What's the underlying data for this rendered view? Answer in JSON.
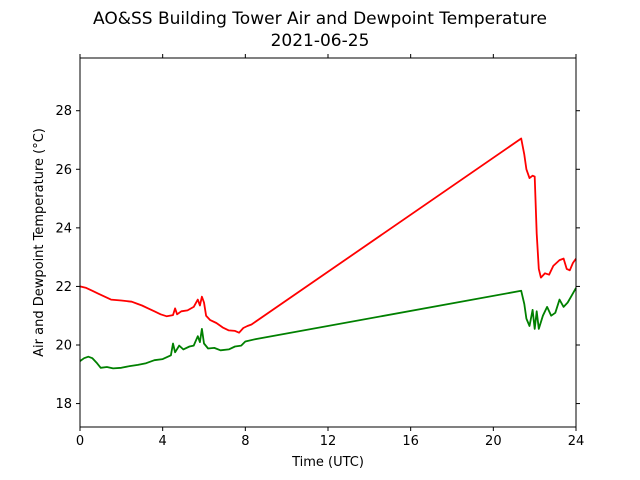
{
  "chart_data": {
    "type": "line",
    "title": "AO&SS Building Tower Air and Dewpoint Temperature",
    "subtitle": "2021-06-25",
    "xlabel": "Time (UTC)",
    "ylabel": "Air and Dewpoint Temperature (°C)",
    "xlim": [
      0,
      24
    ],
    "ylim": [
      17.2,
      29.8
    ],
    "xticks": [
      0,
      4,
      8,
      12,
      16,
      20,
      24
    ],
    "yticks": [
      18,
      20,
      22,
      24,
      26,
      28
    ],
    "grid": false,
    "legend": "none",
    "series": [
      {
        "color": "#ff0000",
        "points": [
          [
            0.0,
            22.0
          ],
          [
            0.3,
            21.95
          ],
          [
            0.6,
            21.85
          ],
          [
            0.9,
            21.75
          ],
          [
            1.2,
            21.65
          ],
          [
            1.5,
            21.55
          ],
          [
            2.0,
            21.52
          ],
          [
            2.5,
            21.48
          ],
          [
            2.8,
            21.4
          ],
          [
            3.0,
            21.35
          ],
          [
            3.3,
            21.25
          ],
          [
            3.6,
            21.15
          ],
          [
            3.9,
            21.05
          ],
          [
            4.2,
            20.98
          ],
          [
            4.5,
            21.02
          ],
          [
            4.6,
            21.25
          ],
          [
            4.7,
            21.05
          ],
          [
            4.9,
            21.15
          ],
          [
            5.2,
            21.18
          ],
          [
            5.5,
            21.3
          ],
          [
            5.7,
            21.55
          ],
          [
            5.8,
            21.35
          ],
          [
            5.9,
            21.65
          ],
          [
            6.0,
            21.45
          ],
          [
            6.1,
            21.0
          ],
          [
            6.3,
            20.85
          ],
          [
            6.6,
            20.75
          ],
          [
            6.9,
            20.6
          ],
          [
            7.2,
            20.5
          ],
          [
            7.5,
            20.48
          ],
          [
            7.7,
            20.42
          ],
          [
            7.9,
            20.58
          ],
          [
            8.1,
            20.65
          ],
          [
            8.3,
            20.7
          ],
          [
            21.35,
            27.05
          ],
          [
            21.5,
            26.5
          ],
          [
            21.6,
            26.0
          ],
          [
            21.75,
            25.7
          ],
          [
            21.9,
            25.78
          ],
          [
            22.0,
            25.75
          ],
          [
            22.1,
            23.8
          ],
          [
            22.2,
            22.6
          ],
          [
            22.3,
            22.3
          ],
          [
            22.5,
            22.45
          ],
          [
            22.7,
            22.4
          ],
          [
            22.9,
            22.7
          ],
          [
            23.2,
            22.9
          ],
          [
            23.4,
            22.95
          ],
          [
            23.55,
            22.6
          ],
          [
            23.7,
            22.55
          ],
          [
            23.85,
            22.8
          ],
          [
            24.0,
            22.95
          ]
        ]
      },
      {
        "color": "#008000",
        "points": [
          [
            0.0,
            19.45
          ],
          [
            0.2,
            19.55
          ],
          [
            0.4,
            19.6
          ],
          [
            0.6,
            19.55
          ],
          [
            0.8,
            19.4
          ],
          [
            1.0,
            19.22
          ],
          [
            1.3,
            19.25
          ],
          [
            1.6,
            19.2
          ],
          [
            2.0,
            19.22
          ],
          [
            2.4,
            19.28
          ],
          [
            2.8,
            19.32
          ],
          [
            3.2,
            19.38
          ],
          [
            3.6,
            19.48
          ],
          [
            4.0,
            19.52
          ],
          [
            4.4,
            19.65
          ],
          [
            4.5,
            20.05
          ],
          [
            4.6,
            19.75
          ],
          [
            4.8,
            19.98
          ],
          [
            5.0,
            19.85
          ],
          [
            5.3,
            19.95
          ],
          [
            5.5,
            19.98
          ],
          [
            5.7,
            20.3
          ],
          [
            5.8,
            20.1
          ],
          [
            5.9,
            20.55
          ],
          [
            6.0,
            20.05
          ],
          [
            6.2,
            19.88
          ],
          [
            6.5,
            19.9
          ],
          [
            6.8,
            19.82
          ],
          [
            7.2,
            19.85
          ],
          [
            7.5,
            19.95
          ],
          [
            7.8,
            19.98
          ],
          [
            8.0,
            20.12
          ],
          [
            8.5,
            20.2
          ],
          [
            21.35,
            21.85
          ],
          [
            21.5,
            21.4
          ],
          [
            21.6,
            20.9
          ],
          [
            21.75,
            20.65
          ],
          [
            21.9,
            21.2
          ],
          [
            22.0,
            20.55
          ],
          [
            22.1,
            21.15
          ],
          [
            22.2,
            20.55
          ],
          [
            22.4,
            21.0
          ],
          [
            22.6,
            21.3
          ],
          [
            22.8,
            21.0
          ],
          [
            23.0,
            21.1
          ],
          [
            23.2,
            21.55
          ],
          [
            23.4,
            21.3
          ],
          [
            23.6,
            21.45
          ],
          [
            23.8,
            21.7
          ],
          [
            24.0,
            21.95
          ]
        ]
      }
    ]
  }
}
